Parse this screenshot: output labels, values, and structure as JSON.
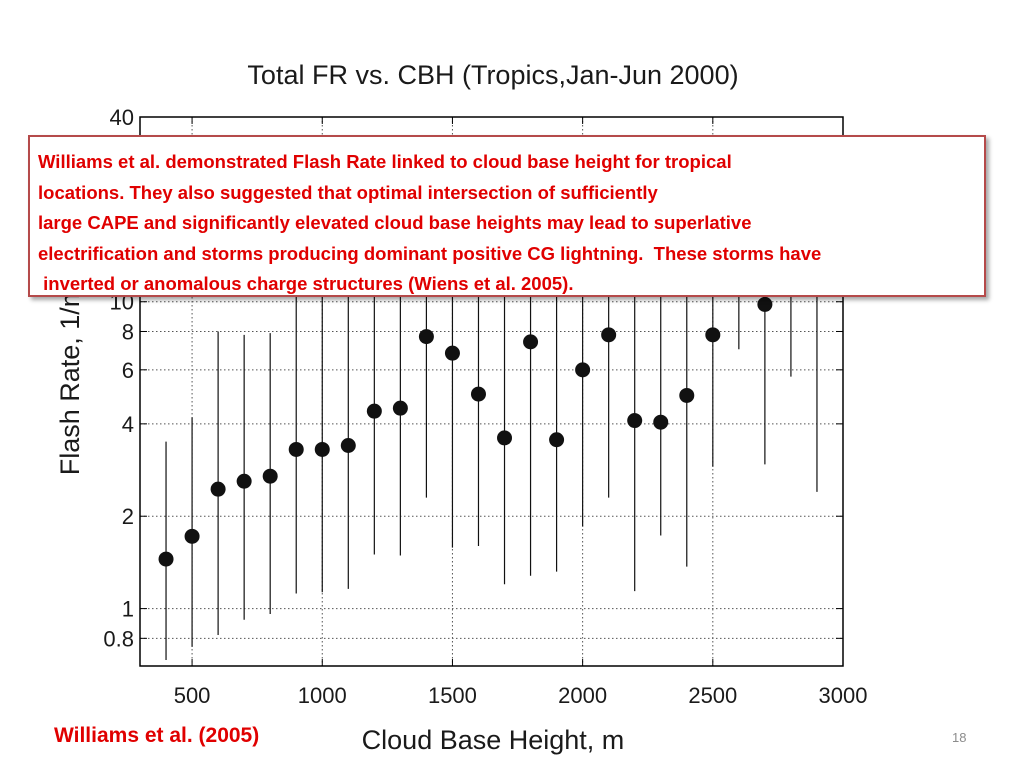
{
  "chart_data": {
    "type": "scatter",
    "title": "Total FR vs. CBH (Tropics,Jan-Jun 2000)",
    "xlabel": "Cloud Base Height, m",
    "ylabel": "Flash Rate, 1/m",
    "xlim": [
      300,
      3000
    ],
    "ylim": [
      0.65,
      40
    ],
    "yscale": "log",
    "grid": true,
    "xticks": [
      500,
      1000,
      1500,
      2000,
      2500,
      3000
    ],
    "xtick_labels": [
      "500",
      "1000",
      "1500",
      "2000",
      "2500",
      "3000"
    ],
    "yticks": [
      0.8,
      1,
      2,
      4,
      6,
      8,
      10,
      40
    ],
    "ytick_labels": [
      "0.8",
      "1",
      "2",
      "4",
      "6",
      "8",
      "10",
      "40"
    ],
    "series": [
      {
        "marker": "filled-circle",
        "color": "#111111",
        "x": [
          400,
          500,
          600,
          700,
          800,
          900,
          1000,
          1100,
          1200,
          1300,
          1400,
          1500,
          1600,
          1700,
          1800,
          1900,
          2000,
          2100,
          2200,
          2300,
          2400,
          2500,
          2600,
          2700,
          2800,
          2900
        ],
        "y": [
          1.45,
          1.72,
          2.45,
          2.6,
          2.7,
          3.3,
          3.3,
          3.4,
          4.4,
          4.5,
          7.7,
          6.8,
          5.0,
          3.6,
          7.4,
          3.55,
          6.0,
          7.8,
          4.1,
          4.05,
          4.95,
          7.8,
          null,
          9.8,
          null,
          null
        ],
        "y_low": [
          0.68,
          0.75,
          0.82,
          0.92,
          0.96,
          1.12,
          1.13,
          1.16,
          1.5,
          1.49,
          2.3,
          1.58,
          1.6,
          1.2,
          1.28,
          1.32,
          1.85,
          2.3,
          1.14,
          1.73,
          1.37,
          2.9,
          7.0,
          2.95,
          5.7,
          2.4
        ],
        "y_high": [
          3.5,
          4.2,
          8.0,
          7.8,
          7.9,
          20,
          20,
          20,
          20,
          20,
          20,
          20,
          20,
          20,
          20,
          20,
          20,
          20,
          20,
          20,
          20,
          20,
          20,
          20,
          20,
          20
        ]
      }
    ]
  },
  "callout": {
    "lines": [
      "Williams et al. demonstrated Flash Rate linked to cloud base height for tropical",
      "locations. They also suggested that optimal intersection of sufficiently",
      "large CAPE and significantly elevated cloud base heights may lead to superlative",
      "electrification and storms producing dominant positive CG lightning.  These storms have",
      " inverted or anomalous charge structures (Wiens et al. 2005)."
    ]
  },
  "citation": "Williams et al. (2005)",
  "slide_number": "18",
  "colors": {
    "annotation_text": "#e00000",
    "annotation_border": "#b54a4a"
  }
}
